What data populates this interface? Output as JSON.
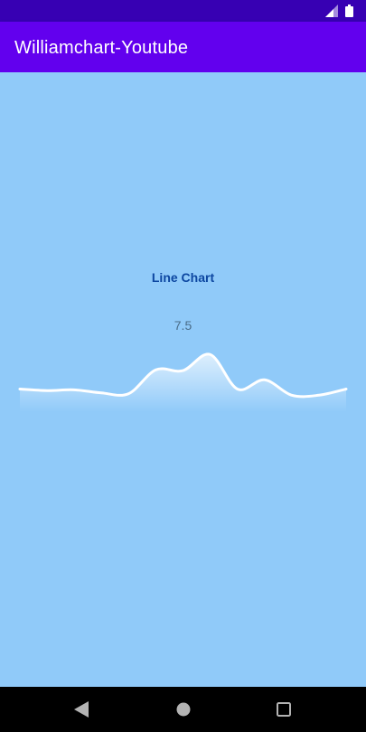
{
  "app": {
    "title": "Williamchart-Youtube"
  },
  "status_bar": {
    "icons": [
      "signal-icon",
      "battery-icon"
    ]
  },
  "navigation_bar": {
    "buttons": [
      "back-icon",
      "home-icon",
      "recents-icon"
    ]
  },
  "colors": {
    "status_bar": "#3700B3",
    "app_bar": "#6200EE",
    "background": "#90CAF9",
    "line": "#FFFFFF",
    "title_text": "#0D47A1"
  },
  "chart": {
    "title": "Line Chart",
    "selected_value": "7.5"
  },
  "chart_data": {
    "type": "area",
    "title": "Line Chart",
    "xlabel": "",
    "ylabel": "",
    "axes_visible": false,
    "grid": false,
    "smooth": true,
    "gradient_fill": true,
    "ylim": [
      0,
      8
    ],
    "x": [
      0,
      1,
      2,
      3,
      4,
      5,
      6,
      7,
      8,
      9,
      10,
      11,
      12
    ],
    "values": [
      3.0,
      2.8,
      2.9,
      2.5,
      2.4,
      5.5,
      5.4,
      7.5,
      3.0,
      4.2,
      2.2,
      2.2,
      3.0
    ],
    "highlight_label": "7.5"
  }
}
